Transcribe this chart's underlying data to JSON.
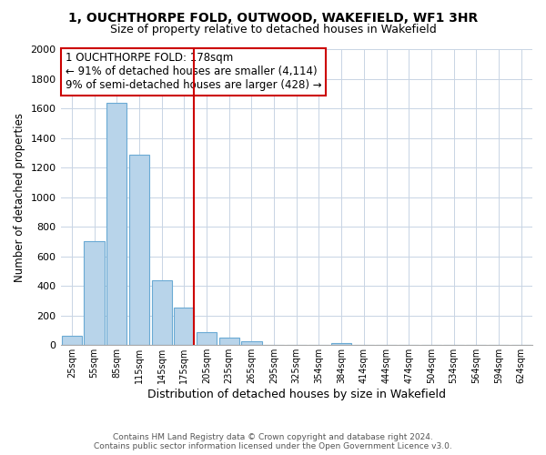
{
  "title": "1, OUCHTHORPE FOLD, OUTWOOD, WAKEFIELD, WF1 3HR",
  "subtitle": "Size of property relative to detached houses in Wakefield",
  "xlabel": "Distribution of detached houses by size in Wakefield",
  "ylabel": "Number of detached properties",
  "bar_labels": [
    "25sqm",
    "55sqm",
    "85sqm",
    "115sqm",
    "145sqm",
    "175sqm",
    "205sqm",
    "235sqm",
    "265sqm",
    "295sqm",
    "325sqm",
    "354sqm",
    "384sqm",
    "414sqm",
    "444sqm",
    "474sqm",
    "504sqm",
    "534sqm",
    "564sqm",
    "594sqm",
    "624sqm"
  ],
  "bar_values": [
    65,
    700,
    1640,
    1285,
    440,
    255,
    90,
    50,
    25,
    0,
    0,
    0,
    15,
    0,
    0,
    0,
    0,
    0,
    0,
    0,
    0
  ],
  "bar_color": "#b8d4ea",
  "bar_edge_color": "#6aaad4",
  "vline_index": 5,
  "vline_color": "#cc0000",
  "annotation_line1": "1 OUCHTHORPE FOLD: 178sqm",
  "annotation_line2": "← 91% of detached houses are smaller (4,114)",
  "annotation_line3": "9% of semi-detached houses are larger (428) →",
  "annotation_box_color": "#ffffff",
  "annotation_box_edge_color": "#cc0000",
  "ylim": [
    0,
    2000
  ],
  "yticks": [
    0,
    200,
    400,
    600,
    800,
    1000,
    1200,
    1400,
    1600,
    1800,
    2000
  ],
  "footer_line1": "Contains HM Land Registry data © Crown copyright and database right 2024.",
  "footer_line2": "Contains public sector information licensed under the Open Government Licence v3.0.",
  "background_color": "#ffffff",
  "grid_color": "#c8d4e4",
  "fig_width": 6.0,
  "fig_height": 5.0,
  "dpi": 100
}
